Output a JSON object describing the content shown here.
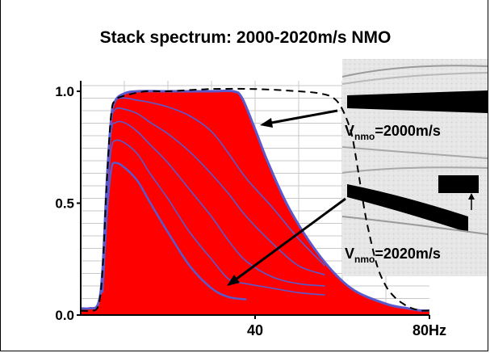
{
  "chart_data": {
    "type": "area",
    "title": "Stack spectrum: 2000-2020m/s NMO",
    "xlabel": "",
    "ylabel": "",
    "xlim": [
      0,
      80
    ],
    "ylim": [
      0,
      1.0
    ],
    "x_ticks": [
      {
        "value": 40,
        "label": "40"
      },
      {
        "value": 80,
        "label": "80Hz"
      }
    ],
    "y_ticks": [
      {
        "value": 0.0,
        "label": "0.0"
      },
      {
        "value": 0.5,
        "label": "0.5"
      },
      {
        "value": 1.0,
        "label": "1.0"
      }
    ],
    "grid": true,
    "colors": {
      "fill": "#ff0000",
      "curves": "#5a5acd",
      "dashed": "#000000"
    },
    "filled_spectrum": {
      "x": [
        0,
        2,
        4,
        5,
        6,
        7,
        8,
        10,
        13,
        20,
        30,
        35,
        37,
        40,
        43,
        48,
        55,
        62,
        70,
        75,
        78,
        80
      ],
      "y": [
        0.03,
        0.03,
        0.05,
        0.2,
        0.6,
        0.88,
        0.96,
        0.99,
        1.0,
        1.0,
        1.0,
        1.0,
        0.97,
        0.83,
        0.68,
        0.47,
        0.26,
        0.12,
        0.05,
        0.03,
        0.02,
        0.02
      ]
    },
    "series": [
      {
        "x": [
          5,
          6,
          7,
          8,
          10,
          13,
          16,
          20,
          25,
          30,
          34,
          38,
          44,
          50,
          56
        ],
        "y": [
          0.1,
          0.6,
          0.9,
          0.96,
          0.97,
          0.96,
          0.95,
          0.93,
          0.89,
          0.82,
          0.72,
          0.61,
          0.48,
          0.34,
          0.22
        ]
      },
      {
        "x": [
          5,
          6,
          7,
          8,
          10,
          13,
          16,
          20,
          25,
          30,
          34,
          38,
          44,
          50,
          56
        ],
        "y": [
          0.1,
          0.58,
          0.86,
          0.92,
          0.92,
          0.9,
          0.86,
          0.81,
          0.73,
          0.63,
          0.54,
          0.44,
          0.32,
          0.22,
          0.18
        ]
      },
      {
        "x": [
          5,
          6,
          7,
          8,
          10,
          13,
          16,
          20,
          25,
          30,
          34,
          38,
          44,
          50,
          56
        ],
        "y": [
          0.1,
          0.55,
          0.82,
          0.86,
          0.86,
          0.82,
          0.76,
          0.68,
          0.56,
          0.44,
          0.33,
          0.24,
          0.17,
          0.14,
          0.13
        ]
      },
      {
        "x": [
          5,
          6,
          7,
          8,
          10,
          13,
          16,
          20,
          25,
          30,
          34,
          38,
          44,
          50,
          56
        ],
        "y": [
          0.1,
          0.52,
          0.74,
          0.78,
          0.77,
          0.72,
          0.63,
          0.52,
          0.37,
          0.25,
          0.16,
          0.14,
          0.12,
          0.1,
          0.09
        ]
      },
      {
        "x": [
          5,
          6,
          7,
          8,
          10,
          13,
          16,
          20,
          25,
          30,
          34,
          38
        ],
        "y": [
          0.1,
          0.45,
          0.65,
          0.68,
          0.66,
          0.6,
          0.5,
          0.37,
          0.22,
          0.12,
          0.08,
          0.07
        ]
      }
    ],
    "dashed_curve": {
      "x": [
        0,
        2,
        4,
        5,
        6,
        7,
        8,
        10,
        15,
        20,
        30,
        40,
        50,
        55,
        58,
        60,
        62,
        63,
        64,
        65,
        66,
        68,
        70,
        72,
        74,
        76,
        78,
        80
      ],
      "y": [
        0.02,
        0.02,
        0.04,
        0.2,
        0.6,
        0.9,
        0.96,
        0.98,
        1.0,
        1.0,
        1.01,
        1.01,
        1.0,
        0.99,
        0.97,
        0.92,
        0.82,
        0.72,
        0.6,
        0.48,
        0.38,
        0.22,
        0.13,
        0.08,
        0.05,
        0.03,
        0.02,
        0.02
      ]
    },
    "annotations": [
      {
        "text_parts": [
          "V",
          "nmo",
          "=2000m/s"
        ]
      },
      {
        "text_parts": [
          "V",
          "nmo",
          "=2020m/s"
        ]
      }
    ]
  }
}
